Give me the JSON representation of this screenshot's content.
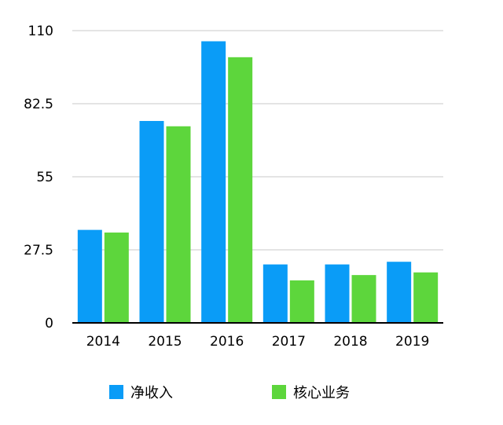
{
  "chart_data": {
    "type": "bar",
    "categories": [
      "2014",
      "2015",
      "2016",
      "2017",
      "2018",
      "2019"
    ],
    "series": [
      {
        "name": "净收入",
        "color": "#0a9cf7",
        "values": [
          35,
          76,
          106,
          22,
          22,
          23
        ]
      },
      {
        "name": "核心业务",
        "color": "#5dd63c",
        "values": [
          34,
          74,
          100,
          16,
          18,
          19
        ]
      }
    ],
    "yticks": [
      "0",
      "27.5",
      "55",
      "82.5",
      "110"
    ],
    "ylim": [
      0,
      110
    ],
    "grid": true,
    "legend_position": "bottom"
  }
}
